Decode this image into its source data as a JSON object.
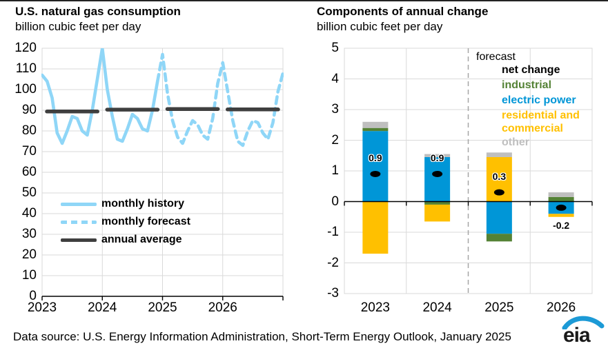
{
  "chart_data": [
    {
      "type": "line",
      "title": "U.S. natural gas consumption",
      "subtitle": "billion cubic feet per day",
      "ylim": [
        0,
        120
      ],
      "yticks": [
        0,
        10,
        20,
        30,
        40,
        50,
        60,
        70,
        80,
        90,
        100,
        110,
        120
      ],
      "xticks": [
        "2023",
        "2024",
        "2025",
        "2026"
      ],
      "grid": true,
      "legend_position": "inside-lower-left",
      "series": [
        {
          "name": "monthly history",
          "style": "solid",
          "color": "#8FD6F7",
          "start_index": 0,
          "values": [
            107,
            104,
            96,
            79,
            74,
            80,
            87,
            86,
            80,
            78,
            90,
            105,
            120,
            100,
            87,
            76,
            75,
            81,
            88,
            86,
            81,
            80,
            90,
            104
          ]
        },
        {
          "name": "monthly forecast",
          "style": "dashed",
          "color": "#8FD6F7",
          "start_index": 23,
          "values": [
            104,
            117,
            98,
            85,
            77,
            74,
            80,
            85,
            83,
            78,
            76,
            86,
            103,
            113,
            99,
            85,
            75,
            73,
            80,
            85,
            84,
            79,
            76,
            84,
            99,
            108
          ]
        },
        {
          "name": "annual average",
          "style": "solid",
          "color": "#3F3F3F",
          "annual_values": [
            89.4,
            90.3,
            90.6,
            90.4
          ]
        }
      ]
    },
    {
      "type": "bar",
      "title": "Components of annual change",
      "subtitle": "billion cubic feet per day",
      "ylim": [
        -3,
        5
      ],
      "yticks": [
        -3,
        -2,
        -1,
        0,
        1,
        2,
        3,
        4,
        5
      ],
      "categories": [
        "2023",
        "2024",
        "2025",
        "2026"
      ],
      "grid": true,
      "forecast_label": "forecast",
      "forecast_divider_after": "2024",
      "net_change_label": "net change",
      "net_change_color": "#000000",
      "components": [
        {
          "key": "industrial",
          "label": "industrial",
          "color": "#548235"
        },
        {
          "key": "electric_power",
          "label": "electric power",
          "color": "#0096D7"
        },
        {
          "key": "residential_commercial",
          "label": "residential and commercial",
          "color": "#FFC000"
        },
        {
          "key": "other",
          "label": "other",
          "color": "#BFBFBF"
        }
      ],
      "bars": [
        {
          "category": "2023",
          "net_change": 0.9,
          "net_label": "0.9",
          "segments": [
            {
              "component": "electric_power",
              "value": 2.3
            },
            {
              "component": "industrial",
              "value": 0.1
            },
            {
              "component": "other",
              "value": 0.2
            },
            {
              "component": "residential_commercial",
              "value": -1.7
            }
          ]
        },
        {
          "category": "2024",
          "net_change": 0.9,
          "net_label": "0.9",
          "segments": [
            {
              "component": "electric_power",
              "value": 1.45
            },
            {
              "component": "other",
              "value": 0.1
            },
            {
              "component": "industrial",
              "value": -0.1
            },
            {
              "component": "residential_commercial",
              "value": -0.55
            }
          ]
        },
        {
          "category": "2025",
          "net_change": 0.3,
          "net_label": "0.3",
          "segments": [
            {
              "component": "residential_commercial",
              "value": 1.45
            },
            {
              "component": "other",
              "value": 0.15
            },
            {
              "component": "electric_power",
              "value": -1.05
            },
            {
              "component": "industrial",
              "value": -0.25
            }
          ]
        },
        {
          "category": "2026",
          "net_change": -0.2,
          "net_label": "-0.2",
          "segments": [
            {
              "component": "industrial",
              "value": 0.15
            },
            {
              "component": "other",
              "value": 0.15
            },
            {
              "component": "electric_power",
              "value": -0.4
            },
            {
              "component": "residential_commercial",
              "value": -0.1
            }
          ]
        }
      ]
    }
  ],
  "footer": {
    "text": "Data source: U.S. Energy Information Administration, Short-Term Energy Outlook, January 2025",
    "logo_text": "eia"
  }
}
